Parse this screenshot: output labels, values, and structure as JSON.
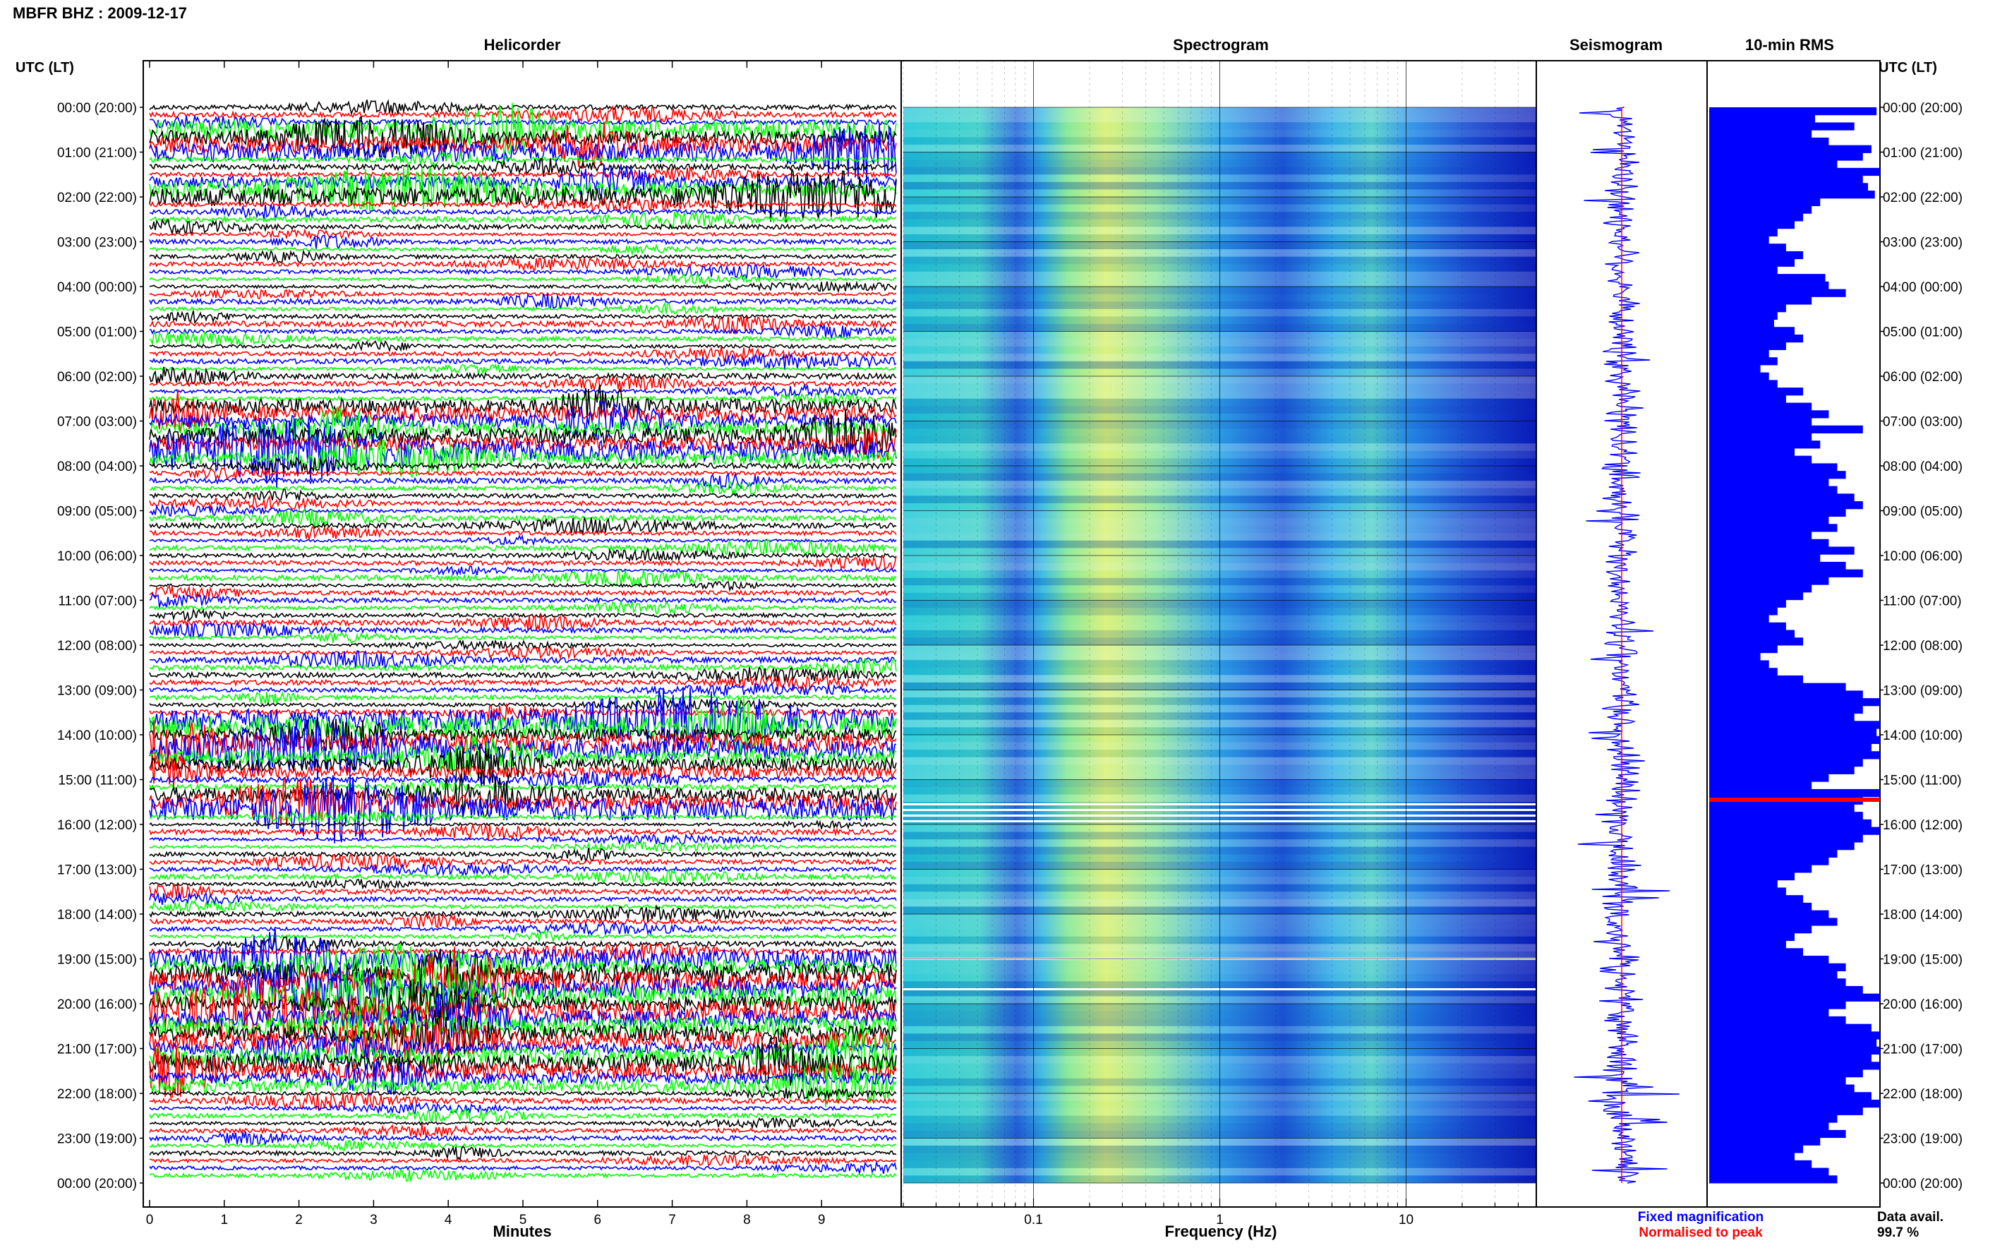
{
  "header": {
    "station_title": "MBFR BHZ : 2009-12-17",
    "utc_lt_left": "UTC (LT)",
    "utc_lt_right": "UTC (LT)"
  },
  "panels": {
    "helicorder": "Helicorder",
    "spectrogram": "Spectrogram",
    "seismogram": "Seismogram",
    "rms": "10-min RMS"
  },
  "chart_data": {
    "type": "heatmap",
    "helicorder": {
      "xlabel": "Minutes",
      "xticks": [
        "0",
        "1",
        "2",
        "3",
        "4",
        "5",
        "6",
        "7",
        "8",
        "9"
      ],
      "xlim": [
        0,
        10
      ],
      "trace_colors": [
        "#000000",
        "#ff0000",
        "#0000ff",
        "#00ff00"
      ]
    },
    "time_labels": [
      "00:00 (20:00)",
      "01:00 (21:00)",
      "02:00 (22:00)",
      "03:00 (23:00)",
      "04:00 (00:00)",
      "05:00 (01:00)",
      "06:00 (02:00)",
      "07:00 (03:00)",
      "08:00 (04:00)",
      "09:00 (05:00)",
      "10:00 (06:00)",
      "11:00 (07:00)",
      "12:00 (08:00)",
      "13:00 (09:00)",
      "14:00 (10:00)",
      "15:00 (11:00)",
      "16:00 (12:00)",
      "17:00 (13:00)",
      "18:00 (14:00)",
      "19:00 (15:00)",
      "20:00 (16:00)",
      "21:00 (17:00)",
      "22:00 (18:00)",
      "23:00 (19:00)",
      "00:00 (20:00)"
    ],
    "spectrogram": {
      "xlabel": "Frequency (Hz)",
      "xticks": [
        "0.1",
        "1",
        "10"
      ],
      "xscale": "log",
      "xlim": [
        0.02,
        50
      ]
    },
    "seismogram": {
      "fixed_color": "#0000ff",
      "peak_color": "#ff0000"
    },
    "rms": {
      "values": [
        0.98,
        0.62,
        0.85,
        0.6,
        0.7,
        0.95,
        0.9,
        0.75,
        1.0,
        0.9,
        0.93,
        0.97,
        0.65,
        0.6,
        0.55,
        0.5,
        0.4,
        0.35,
        0.45,
        0.55,
        0.5,
        0.4,
        0.68,
        0.7,
        0.8,
        0.6,
        0.45,
        0.4,
        0.38,
        0.5,
        0.55,
        0.45,
        0.35,
        0.4,
        0.3,
        0.35,
        0.4,
        0.55,
        0.45,
        0.6,
        0.7,
        0.6,
        0.9,
        0.6,
        0.65,
        0.5,
        0.6,
        0.75,
        0.8,
        0.7,
        0.75,
        0.85,
        0.9,
        0.8,
        0.7,
        0.75,
        0.6,
        0.7,
        0.85,
        0.65,
        0.8,
        0.9,
        0.7,
        0.6,
        0.55,
        0.45,
        0.4,
        0.35,
        0.45,
        0.5,
        0.55,
        0.4,
        0.3,
        0.35,
        0.4,
        0.55,
        0.8,
        0.9,
        1.0,
        0.9,
        0.85,
        1.0,
        0.98,
        1.0,
        0.95,
        1.0,
        0.9,
        0.85,
        0.7,
        0.6,
        1.0,
        0.9,
        0.85,
        0.9,
        0.95,
        1.0,
        0.9,
        0.85,
        0.75,
        0.7,
        0.6,
        0.5,
        0.4,
        0.45,
        0.55,
        0.6,
        0.7,
        0.75,
        0.6,
        0.5,
        0.45,
        0.55,
        0.7,
        0.8,
        0.75,
        0.8,
        0.9,
        1.0,
        0.8,
        0.7,
        0.8,
        0.95,
        1.0,
        0.98,
        1.0,
        0.95,
        1.0,
        0.9,
        0.8,
        0.85,
        0.95,
        1.0,
        0.9,
        0.75,
        0.7,
        0.8,
        0.65,
        0.55,
        0.5,
        0.6,
        0.7,
        0.75
      ]
    },
    "legend": {
      "fixed_magnification": "Fixed magnification",
      "normalised_to_peak": "Normalised to peak",
      "data_avail_label": "Data avail.",
      "data_avail_value": "99.7 %"
    }
  }
}
